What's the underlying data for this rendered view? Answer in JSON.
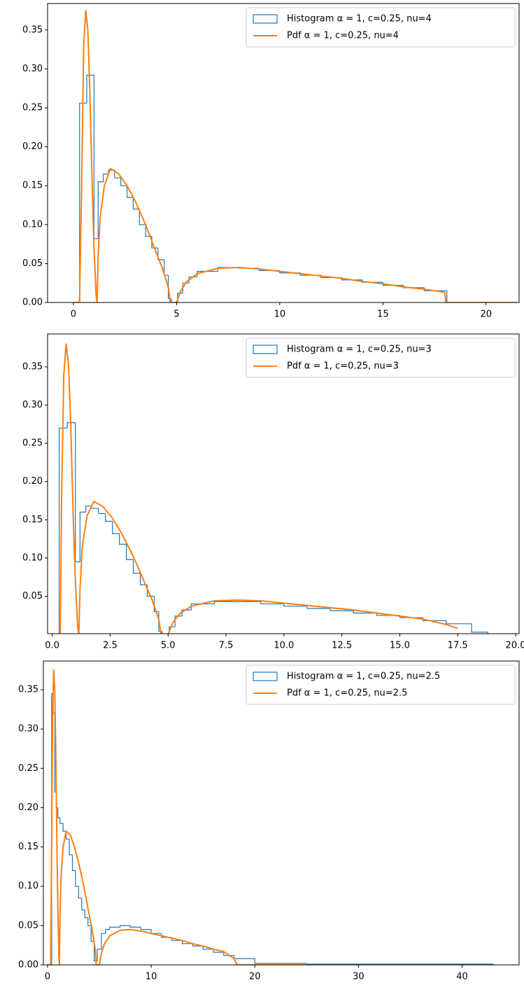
{
  "chart_data": [
    {
      "type": "histogram",
      "legend": "upper right",
      "xlim": [
        -1.25,
        21.6
      ],
      "ylim": [
        0,
        0.384
      ],
      "xticks": [
        0,
        5,
        10,
        15,
        20
      ],
      "yticks": [
        {
          "value": 0,
          "label": "0.00"
        },
        {
          "value": 0.05,
          "label": "0.05"
        },
        {
          "value": 0.1,
          "label": "0.10"
        },
        {
          "value": 0.15,
          "label": "0.15"
        },
        {
          "value": 0.2,
          "label": "0.20"
        },
        {
          "value": 0.25,
          "label": "0.25"
        },
        {
          "value": 0.3,
          "label": "0.30"
        },
        {
          "value": 0.35,
          "label": "0.35"
        }
      ],
      "series": [
        {
          "name": "Histogram α = 1, c=0.25, nu=4",
          "color": "#1f77b4",
          "kind": "step",
          "bins": [
            0.3,
            0.65,
            1.0,
            1.2,
            1.45,
            1.7,
            2.0,
            2.3,
            2.6,
            2.9,
            3.2,
            3.5,
            3.8,
            4.1,
            4.4,
            4.6,
            4.75,
            5.05,
            5.3,
            5.6,
            6,
            7,
            8,
            9,
            10,
            11,
            12,
            13,
            14,
            15,
            16,
            17,
            18.1
          ],
          "values": [
            0.256,
            0.292,
            0.082,
            0.155,
            0.165,
            0.17,
            0.16,
            0.15,
            0.135,
            0.12,
            0.1,
            0.085,
            0.07,
            0.055,
            0.035,
            0.005,
            0,
            0.012,
            0.025,
            0.033,
            0.04,
            0.045,
            0.044,
            0.041,
            0.038,
            0.035,
            0.032,
            0.029,
            0.026,
            0.022,
            0.019,
            0.015
          ]
        },
        {
          "name": "Pdf α = 1, c=0.25, nu=4",
          "color": "#ff7f0e",
          "kind": "line",
          "x": [
            0,
            0.3,
            0.4,
            0.5,
            0.6,
            0.7,
            0.8,
            0.9,
            1.0,
            1.1,
            1.15,
            1.2,
            1.3,
            1.5,
            1.8,
            2.2,
            2.6,
            3.0,
            3.5,
            4.0,
            4.3,
            4.6,
            4.7,
            5.0,
            5.2,
            5.5,
            6,
            7,
            8,
            9,
            10,
            11,
            12,
            13,
            14,
            15,
            16,
            17,
            18,
            18.05,
            21.5
          ],
          "values": [
            0,
            0,
            0.15,
            0.33,
            0.375,
            0.35,
            0.27,
            0.16,
            0.07,
            0.01,
            0,
            0.06,
            0.11,
            0.15,
            0.172,
            0.165,
            0.15,
            0.13,
            0.1,
            0.065,
            0.045,
            0.02,
            0,
            0,
            0.015,
            0.027,
            0.037,
            0.044,
            0.045,
            0.043,
            0.04,
            0.037,
            0.034,
            0.031,
            0.027,
            0.024,
            0.02,
            0.017,
            0.013,
            0,
            0
          ]
        }
      ]
    },
    {
      "type": "histogram",
      "legend": "upper right",
      "xlim": [
        -0.2,
        20.15
      ],
      "ylim": [
        0.001,
        0.393
      ],
      "xticks": [
        {
          "value": 0,
          "label": "0.0"
        },
        2.5,
        {
          "value": 5,
          "label": "5.0"
        },
        7.5,
        {
          "value": 10,
          "label": "10.0"
        },
        12.5,
        {
          "value": 15,
          "label": "15.0"
        },
        17.5,
        {
          "value": 20,
          "label": "20.0"
        }
      ],
      "yticks": [
        {
          "value": 0.05,
          "label": "0.05"
        },
        {
          "value": 0.1,
          "label": "0.10"
        },
        {
          "value": 0.15,
          "label": "0.15"
        },
        {
          "value": 0.2,
          "label": "0.20"
        },
        {
          "value": 0.25,
          "label": "0.25"
        },
        {
          "value": 0.3,
          "label": "0.30"
        },
        {
          "value": 0.35,
          "label": "0.35"
        }
      ],
      "series": [
        {
          "name": "Histogram α = 1, c=0.25, nu=3",
          "color": "#1f77b4",
          "kind": "step",
          "bins": [
            0.3,
            0.65,
            1.0,
            1.2,
            1.45,
            1.7,
            2.0,
            2.3,
            2.6,
            2.9,
            3.2,
            3.5,
            3.8,
            4.1,
            4.4,
            4.6,
            4.75,
            5.05,
            5.3,
            5.6,
            6,
            7,
            8,
            9,
            10,
            11,
            12,
            13,
            14,
            15,
            16,
            17,
            18.1,
            18.8
          ],
          "values": [
            0.27,
            0.277,
            0.095,
            0.16,
            0.168,
            0.165,
            0.158,
            0.148,
            0.132,
            0.118,
            0.098,
            0.08,
            0.065,
            0.05,
            0.03,
            0.004,
            0,
            0.01,
            0.024,
            0.032,
            0.04,
            0.043,
            0.043,
            0.04,
            0.037,
            0.034,
            0.031,
            0.028,
            0.025,
            0.022,
            0.018,
            0.014,
            0.003
          ]
        },
        {
          "name": "Pdf α = 1, c=0.25, nu=3",
          "color": "#ff7f0e",
          "kind": "line",
          "x": [
            0.35,
            0.4,
            0.5,
            0.6,
            0.7,
            0.8,
            0.9,
            1.0,
            1.1,
            1.15,
            1.2,
            1.3,
            1.5,
            1.8,
            2.2,
            2.6,
            3.0,
            3.5,
            4.0,
            4.3,
            4.6,
            4.7,
            5.0,
            5.2,
            5.5,
            6,
            7,
            8,
            9,
            10,
            11,
            12,
            13,
            14,
            15,
            16,
            17,
            17.5
          ],
          "values": [
            0,
            0.17,
            0.34,
            0.38,
            0.355,
            0.275,
            0.16,
            0.07,
            0.01,
            0,
            0.06,
            0.115,
            0.155,
            0.174,
            0.167,
            0.152,
            0.132,
            0.102,
            0.067,
            0.046,
            0.02,
            0,
            0,
            0.015,
            0.027,
            0.037,
            0.044,
            0.045,
            0.044,
            0.041,
            0.038,
            0.035,
            0.032,
            0.028,
            0.024,
            0.02,
            0.013,
            0.008
          ]
        }
      ]
    },
    {
      "type": "histogram",
      "legend": "upper right",
      "xlim": [
        -0.4,
        45.5
      ],
      "ylim": [
        0,
        0.3865
      ],
      "xticks": [
        0,
        10,
        20,
        30,
        40
      ],
      "yticks": [
        {
          "value": 0,
          "label": "0.00"
        },
        {
          "value": 0.05,
          "label": "0.05"
        },
        {
          "value": 0.1,
          "label": "0.10"
        },
        {
          "value": 0.15,
          "label": "0.15"
        },
        {
          "value": 0.2,
          "label": "0.20"
        },
        {
          "value": 0.25,
          "label": "0.25"
        },
        {
          "value": 0.3,
          "label": "0.30"
        },
        {
          "value": 0.35,
          "label": "0.35"
        }
      ],
      "series": [
        {
          "name": "Histogram α = 1, c=0.25, nu=2.5",
          "color": "#1f77b4",
          "kind": "step",
          "bins": [
            0.4,
            0.55,
            0.7,
            0.85,
            1.0,
            1.2,
            1.5,
            1.8,
            2.1,
            2.4,
            2.7,
            3.0,
            3.3,
            3.6,
            3.9,
            4.2,
            4.5,
            4.8,
            5.2,
            5.6,
            6,
            7,
            8,
            9,
            10,
            11,
            12,
            13,
            14,
            15,
            16,
            17,
            18,
            20,
            25,
            30,
            35,
            40,
            43
          ],
          "values": [
            0.345,
            0.32,
            0.22,
            0.2,
            0.187,
            0.18,
            0.17,
            0.16,
            0.14,
            0.12,
            0.1,
            0.085,
            0.07,
            0.06,
            0.05,
            0.03,
            0.005,
            0.02,
            0.04,
            0.045,
            0.048,
            0.05,
            0.048,
            0.045,
            0.04,
            0.035,
            0.031,
            0.027,
            0.024,
            0.02,
            0.016,
            0.012,
            0.008,
            0.002,
            0.001,
            0.001,
            0.001,
            0.001
          ]
        },
        {
          "name": "Pdf α = 1, c=0.25, nu=2.5",
          "color": "#ff7f0e",
          "kind": "line",
          "x": [
            0,
            0.3,
            0.4,
            0.5,
            0.6,
            0.7,
            0.8,
            0.9,
            1.0,
            1.1,
            1.15,
            1.2,
            1.3,
            1.5,
            1.8,
            2.2,
            2.6,
            3.0,
            3.5,
            4.0,
            4.3,
            4.6,
            4.7,
            5.0,
            5.2,
            5.5,
            6,
            7,
            8,
            9,
            10,
            11,
            12,
            13,
            14,
            15,
            16,
            17,
            18,
            18.3,
            25
          ],
          "values": [
            0,
            0,
            0.15,
            0.33,
            0.375,
            0.35,
            0.27,
            0.16,
            0.07,
            0.01,
            0,
            0.06,
            0.11,
            0.15,
            0.17,
            0.165,
            0.15,
            0.13,
            0.1,
            0.065,
            0.045,
            0.02,
            0,
            0,
            0.015,
            0.027,
            0.037,
            0.044,
            0.045,
            0.043,
            0.04,
            0.037,
            0.034,
            0.031,
            0.027,
            0.024,
            0.02,
            0.017,
            0.008,
            0,
            0
          ]
        }
      ]
    }
  ]
}
